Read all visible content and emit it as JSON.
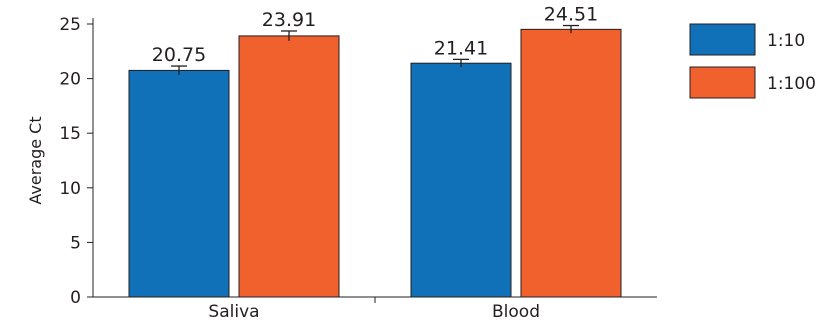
{
  "chart_data": {
    "type": "bar",
    "categories": [
      "Saliva",
      "Blood"
    ],
    "series": [
      {
        "name": "1:10",
        "values": [
          20.75,
          21.41
        ],
        "labels": [
          "20.75",
          "21.41"
        ],
        "errors": [
          0.4,
          0.35
        ],
        "color": "#1070b8"
      },
      {
        "name": "1:100",
        "values": [
          23.91,
          24.51
        ],
        "labels": [
          "23.91",
          "24.51"
        ],
        "errors": [
          0.45,
          0.35
        ],
        "color": "#f0612d"
      }
    ],
    "title": "",
    "xlabel": "",
    "ylabel": "Average Ct",
    "ylim": [
      0,
      25
    ],
    "yticks": [
      0,
      5,
      10,
      15,
      20,
      25
    ],
    "grid": false,
    "legend_position": "top-right"
  }
}
